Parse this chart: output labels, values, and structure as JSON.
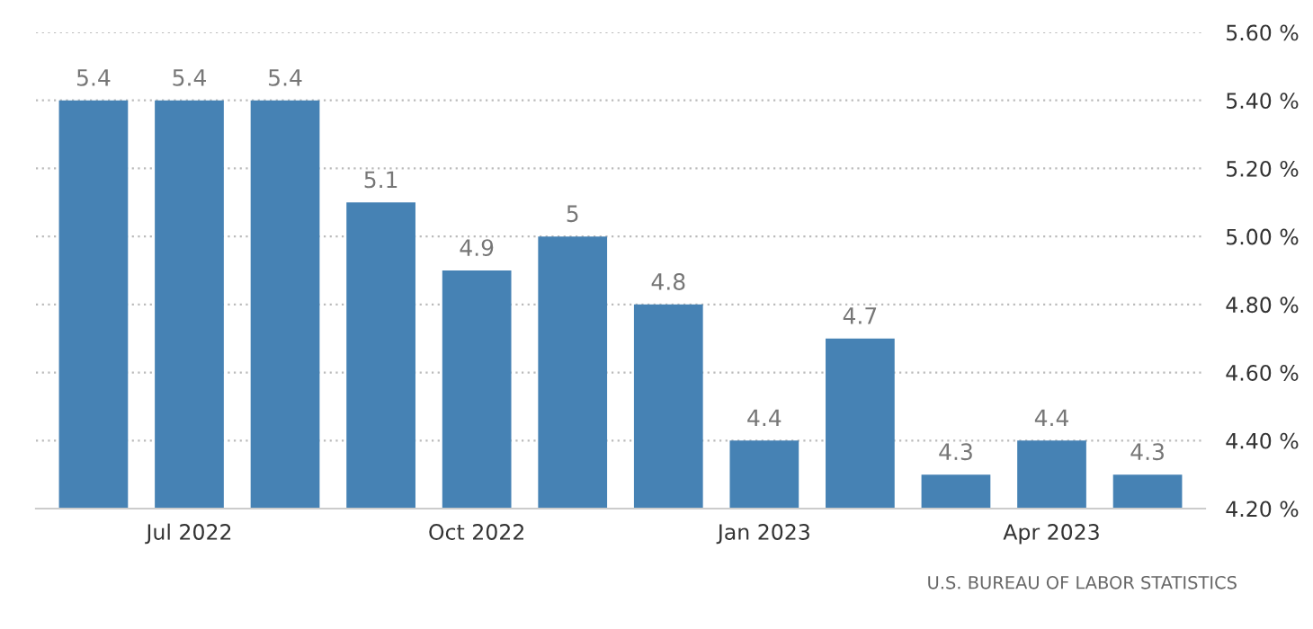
{
  "chart_data": {
    "type": "bar",
    "categories": [
      null,
      "Jul 2022",
      null,
      null,
      "Oct 2022",
      null,
      null,
      "Jan 2023",
      null,
      null,
      "Apr 2023",
      null
    ],
    "values": [
      5.4,
      5.4,
      5.4,
      5.1,
      4.9,
      5,
      4.8,
      4.4,
      4.7,
      4.3,
      4.4,
      4.3
    ],
    "color": "#4682b4",
    "ylim": [
      4.2,
      5.6
    ],
    "yticks": [
      {
        "value": 4.2,
        "label": "4.20 %"
      },
      {
        "value": 4.4,
        "label": "4.40 %"
      },
      {
        "value": 4.6,
        "label": "4.60 %"
      },
      {
        "value": 4.8,
        "label": "4.80 %"
      },
      {
        "value": 5.0,
        "label": "5.00 %"
      },
      {
        "value": 5.2,
        "label": "5.20 %"
      },
      {
        "value": 5.4,
        "label": "5.40 %"
      },
      {
        "value": 5.6,
        "label": "5.60 %"
      }
    ],
    "grid": "y",
    "data_labels": true,
    "annotations": [
      "U.S. BUREAU OF LABOR STATISTICS"
    ]
  }
}
